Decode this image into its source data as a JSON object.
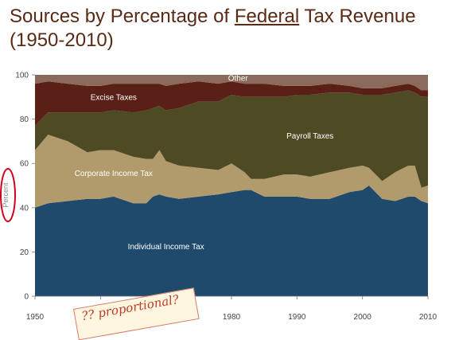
{
  "title": {
    "before": "Sources by Percentage of ",
    "underlined": "Federal",
    "after": " Tax Revenue",
    "line2": "(1950-2010)"
  },
  "annotation": {
    "text": "?? proportional?",
    "shape": "red-circle",
    "color": "#d0021b"
  },
  "chart_data": {
    "type": "area",
    "stacked": true,
    "title": "",
    "xlabel": "",
    "ylabel": "Percent",
    "xlim": [
      1950,
      2010
    ],
    "ylim": [
      0,
      100
    ],
    "xticks": [
      1950,
      1960,
      1970,
      1980,
      1990,
      2000,
      2010
    ],
    "yticks": [
      0,
      20,
      40,
      60,
      80,
      100
    ],
    "grid": false,
    "legend": "none",
    "x": [
      1950,
      1952,
      1955,
      1958,
      1960,
      1962,
      1965,
      1967,
      1968,
      1969,
      1970,
      1972,
      1975,
      1978,
      1980,
      1982,
      1983,
      1985,
      1988,
      1990,
      1992,
      1995,
      1998,
      2000,
      2001,
      2003,
      2005,
      2007,
      2008,
      2009,
      2010
    ],
    "series": [
      {
        "name": "Individual Income Tax",
        "color": "#1f4a6b",
        "values": [
          40,
          42,
          43,
          44,
          44,
          45,
          42,
          42,
          45,
          46,
          45,
          44,
          45,
          46,
          47,
          48,
          48,
          45,
          45,
          45,
          44,
          44,
          47,
          48,
          50,
          44,
          43,
          45,
          45,
          43,
          42
        ]
      },
      {
        "name": "Corporate Income Tax",
        "color": "#b19a6b",
        "values": [
          26,
          31,
          27,
          21,
          22,
          21,
          21,
          20,
          17,
          20,
          16,
          15,
          13,
          11,
          13,
          8,
          5,
          8,
          10,
          10,
          10,
          12,
          11,
          11,
          8,
          8,
          13,
          14,
          14,
          6,
          8
        ]
      },
      {
        "name": "Payroll Taxes",
        "color": "#4e4a23",
        "values": [
          11,
          10,
          13,
          18,
          17,
          18,
          20,
          22,
          23,
          20,
          23,
          26,
          30,
          31,
          31,
          34,
          37,
          37,
          35,
          36,
          37,
          36,
          34,
          32,
          33,
          39,
          36,
          34,
          33,
          41,
          40
        ]
      },
      {
        "name": "Excise Taxes",
        "color": "#5a1f16",
        "values": [
          19,
          14,
          13,
          12,
          12,
          12,
          13,
          12,
          11,
          10,
          11,
          11,
          9,
          8,
          6,
          6,
          6,
          6,
          5,
          4,
          4,
          4,
          3,
          3,
          3,
          3,
          3,
          3,
          3,
          3,
          3
        ]
      },
      {
        "name": "Other",
        "color": "#8a6a5a",
        "values": [
          4,
          3,
          4,
          5,
          5,
          4,
          4,
          4,
          4,
          4,
          5,
          4,
          3,
          4,
          3,
          4,
          4,
          4,
          5,
          5,
          5,
          4,
          5,
          6,
          6,
          6,
          5,
          4,
          5,
          7,
          7
        ]
      }
    ]
  }
}
